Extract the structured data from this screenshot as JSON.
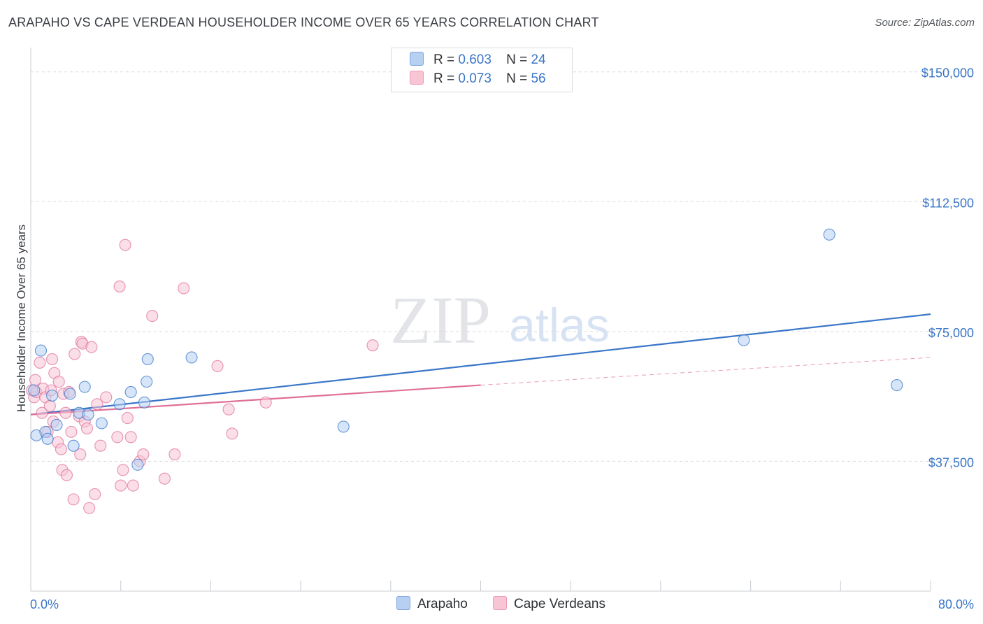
{
  "title": "ARAPAHO VS CAPE VERDEAN HOUSEHOLDER INCOME OVER 65 YEARS CORRELATION CHART",
  "source": "Source: ZipAtlas.com",
  "watermark": {
    "zip": "ZIP",
    "atlas": "atlas"
  },
  "legend_top": [
    {
      "r_label": "R =",
      "r_value": "0.603",
      "n_label": "N =",
      "n_value": "24",
      "color": "#b7d0f2"
    },
    {
      "r_label": "R =",
      "r_value": "0.073",
      "n_label": "N =",
      "n_value": "56",
      "color": "#f8c5d5"
    }
  ],
  "legend_bottom": [
    {
      "name": "Arapaho",
      "color": "#b7d0f2"
    },
    {
      "name": "Cape Verdeans",
      "color": "#f8c5d5"
    }
  ],
  "chart_data": {
    "type": "scatter",
    "ylabel": "Householder Income Over 65 years",
    "xlabel": "",
    "x_tick_labels": [
      "0.0%",
      "80.0%"
    ],
    "y_tick_labels": [
      "$150,000",
      "$112,500",
      "$75,000",
      "$37,500"
    ],
    "xlim": [
      0,
      80
    ],
    "ylim": [
      0,
      155000
    ],
    "y_ticks": [
      150000,
      112500,
      75000,
      37500
    ],
    "grid": true,
    "series": [
      {
        "name": "Arapaho",
        "color": "#3a76c8",
        "fill": "#b7d0f2",
        "points": [
          [
            0.3,
            58000
          ],
          [
            0.5,
            45000
          ],
          [
            0.9,
            69500
          ],
          [
            1.3,
            46000
          ],
          [
            1.5,
            44000
          ],
          [
            1.9,
            56500
          ],
          [
            2.3,
            48000
          ],
          [
            3.5,
            57000
          ],
          [
            3.8,
            42000
          ],
          [
            4.3,
            51500
          ],
          [
            4.8,
            59000
          ],
          [
            5.1,
            51000
          ],
          [
            6.3,
            48500
          ],
          [
            7.9,
            54000
          ],
          [
            8.9,
            57500
          ],
          [
            9.5,
            36500
          ],
          [
            10.1,
            54500
          ],
          [
            10.3,
            60500
          ],
          [
            10.4,
            67000
          ],
          [
            14.3,
            67500
          ],
          [
            27.8,
            47500
          ],
          [
            63.4,
            72500
          ],
          [
            71.0,
            103000
          ],
          [
            77.0,
            59500
          ]
        ],
        "trend": {
          "x": [
            0,
            80
          ],
          "y": [
            51000,
            80000
          ]
        }
      },
      {
        "name": "Cape Verdeans",
        "color": "#e07097",
        "fill": "#f8c5d5",
        "points": [
          [
            0.1,
            58000
          ],
          [
            0.3,
            56000
          ],
          [
            0.4,
            61000
          ],
          [
            0.5,
            57500
          ],
          [
            0.8,
            66000
          ],
          [
            1.0,
            51500
          ],
          [
            1.1,
            58500
          ],
          [
            1.3,
            56000
          ],
          [
            1.5,
            46000
          ],
          [
            1.7,
            53500
          ],
          [
            1.8,
            58000
          ],
          [
            1.9,
            67000
          ],
          [
            2.0,
            49000
          ],
          [
            2.1,
            63000
          ],
          [
            2.4,
            43000
          ],
          [
            2.5,
            60500
          ],
          [
            2.7,
            41000
          ],
          [
            2.8,
            35000
          ],
          [
            2.9,
            57000
          ],
          [
            3.1,
            51500
          ],
          [
            3.2,
            33500
          ],
          [
            3.4,
            57500
          ],
          [
            3.6,
            46000
          ],
          [
            3.8,
            26500
          ],
          [
            3.9,
            68500
          ],
          [
            4.3,
            50500
          ],
          [
            4.4,
            39500
          ],
          [
            4.5,
            72000
          ],
          [
            4.6,
            71500
          ],
          [
            4.8,
            49000
          ],
          [
            5.0,
            47000
          ],
          [
            5.2,
            24000
          ],
          [
            5.4,
            70500
          ],
          [
            5.7,
            28000
          ],
          [
            5.9,
            54000
          ],
          [
            6.2,
            42000
          ],
          [
            6.7,
            56000
          ],
          [
            7.7,
            44500
          ],
          [
            7.9,
            88000
          ],
          [
            8.0,
            30500
          ],
          [
            8.2,
            35000
          ],
          [
            8.4,
            100000
          ],
          [
            8.6,
            50000
          ],
          [
            8.9,
            44500
          ],
          [
            9.1,
            30500
          ],
          [
            9.7,
            37500
          ],
          [
            10.0,
            39500
          ],
          [
            10.8,
            79500
          ],
          [
            11.9,
            32500
          ],
          [
            12.8,
            39500
          ],
          [
            13.6,
            87500
          ],
          [
            16.6,
            65000
          ],
          [
            17.6,
            52500
          ],
          [
            17.9,
            45500
          ],
          [
            20.9,
            54500
          ],
          [
            30.4,
            71000
          ]
        ],
        "trend": {
          "x": [
            0,
            40
          ],
          "y": [
            51000,
            59500
          ]
        },
        "trend_extension": {
          "x": [
            40,
            80
          ],
          "y": [
            59500,
            67500
          ]
        }
      }
    ]
  }
}
